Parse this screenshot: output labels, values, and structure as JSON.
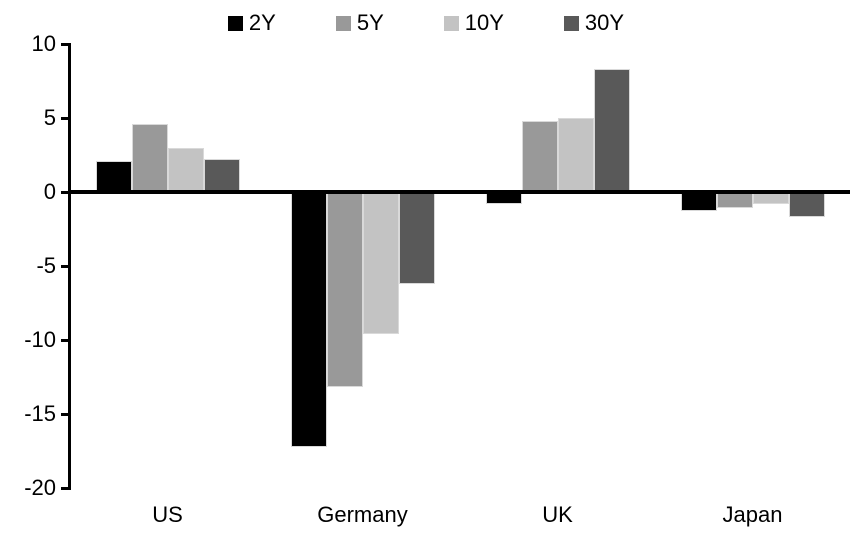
{
  "chart_data": {
    "type": "bar",
    "title": "",
    "categories": [
      "US",
      "Germany",
      "UK",
      "Japan"
    ],
    "series": [
      {
        "name": "2Y",
        "color": "#000000",
        "values": [
          2.1,
          -17.2,
          -0.8,
          -1.3
        ]
      },
      {
        "name": "5Y",
        "color": "#999999",
        "values": [
          4.6,
          -13.2,
          4.8,
          -1.1
        ]
      },
      {
        "name": "10Y",
        "color": "#c3c3c3",
        "values": [
          3.0,
          -9.6,
          5.0,
          -0.8
        ]
      },
      {
        "name": "30Y",
        "color": "#595959",
        "values": [
          2.2,
          -6.2,
          8.3,
          -1.7
        ]
      }
    ],
    "ylim": [
      -20,
      10
    ],
    "yticks": [
      10,
      5,
      0,
      -5,
      -10,
      -15,
      -20
    ],
    "xlabel": "",
    "ylabel": "",
    "legend_position": "top",
    "grid": false,
    "axis_color": "#000000",
    "background_color": "#ffffff"
  }
}
